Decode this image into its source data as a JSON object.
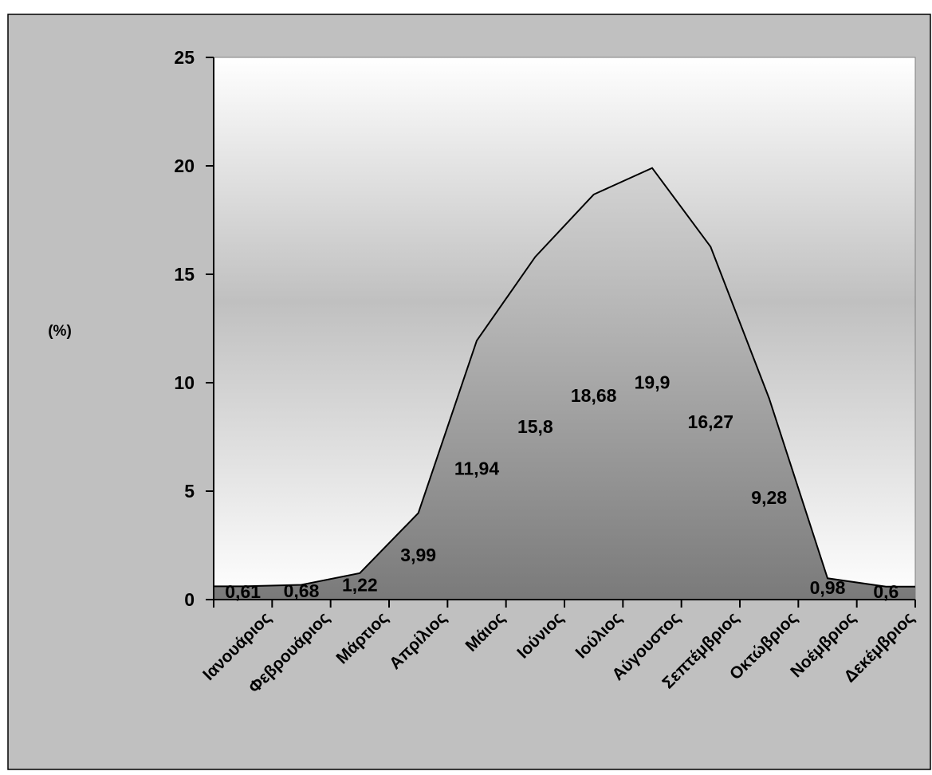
{
  "chart_data": {
    "type": "area",
    "title": "",
    "xlabel": "",
    "ylabel": "(%)",
    "categories": [
      "Ιανουάριος",
      "Φεβρουάριος",
      "Μάρτιος",
      "Απρίλιος",
      "Μάιος",
      "Ιούνιος",
      "Ιούλιος",
      "Αύγουστος",
      "Σεπτέμβριος",
      "Οκτώβριος",
      "Νοέμβριος",
      "Δεκέμβριος"
    ],
    "values": [
      0.61,
      0.68,
      1.22,
      3.99,
      11.94,
      15.8,
      18.68,
      19.9,
      16.27,
      9.28,
      0.98,
      0.6
    ],
    "data_labels": [
      "0,61",
      "0,68",
      "1,22",
      "3,99",
      "11,94",
      "15,8",
      "18,68",
      "19,9",
      "16,27",
      "9,28",
      "0,98",
      "0,6"
    ],
    "ylim": [
      0,
      25
    ],
    "y_ticks": [
      0,
      5,
      10,
      15,
      20,
      25
    ],
    "y_tick_labels": [
      "0",
      "5",
      "10",
      "15",
      "20",
      "25"
    ],
    "grid": false,
    "legend": "none",
    "colors": {
      "chart_area_background": "#c0c0c0",
      "plot_gradient_edge": "#ffffff",
      "plot_gradient_middle": "#c0c0c0",
      "area_fill_top": "#d4d4d4",
      "area_fill_bottom": "#7a7a7a",
      "line": "#000000"
    }
  }
}
